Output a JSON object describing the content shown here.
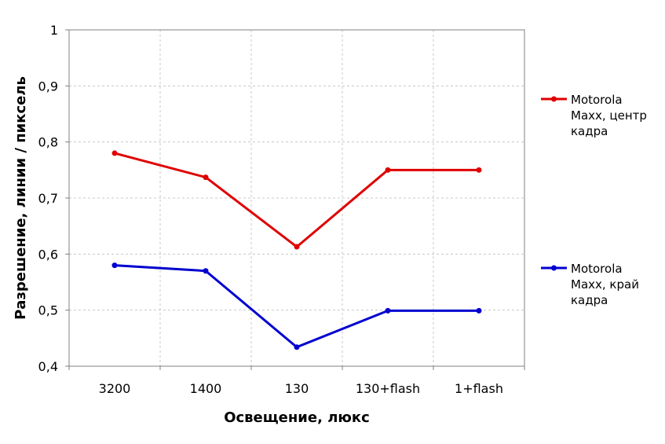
{
  "chart_data": {
    "type": "line",
    "categories": [
      "3200",
      "1400",
      "130",
      "130+flash",
      "1+flash"
    ],
    "series": [
      {
        "name_lines": [
          "Motorola",
          "Maxx, центр",
          "кадра"
        ],
        "color": "#e00000",
        "values": [
          0.78,
          0.737,
          0.613,
          0.75,
          0.75
        ]
      },
      {
        "name_lines": [
          "Motorola",
          "Maxx, край",
          "кадра"
        ],
        "color": "#0000d0",
        "values": [
          0.58,
          0.57,
          0.434,
          0.499,
          0.499
        ]
      }
    ],
    "xlabel": "Освещение, люкс",
    "ylabel": "Разрешение, линии / пиксель",
    "ylim": [
      0.4,
      1.0
    ],
    "yticks": [
      0.4,
      0.5,
      0.6,
      0.7,
      0.8,
      0.9,
      1.0
    ],
    "ytick_labels": [
      "0,4",
      "0,5",
      "0,6",
      "0,7",
      "0,8",
      "0,9",
      "1"
    ],
    "grid": true,
    "legend_position": "right"
  }
}
